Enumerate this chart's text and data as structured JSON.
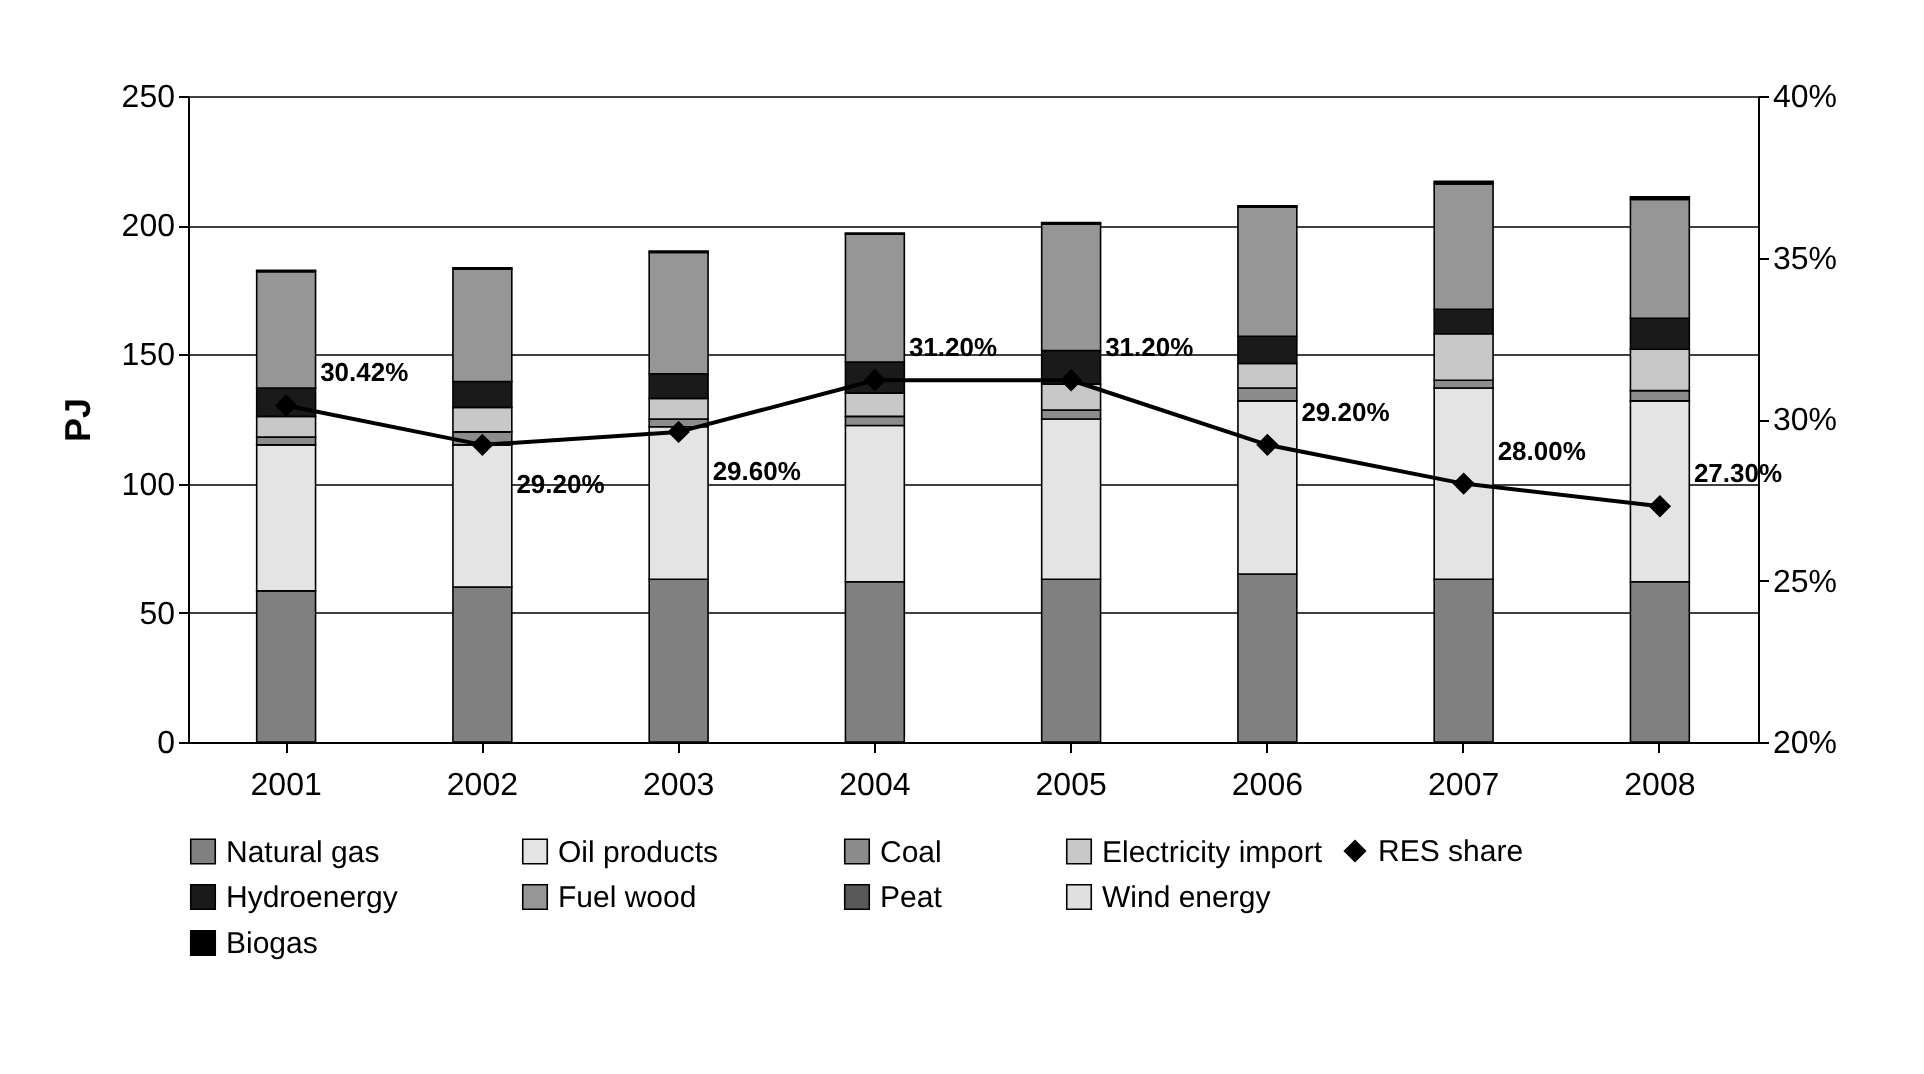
{
  "chart_data": {
    "type": "bar",
    "stacked": true,
    "ylabel": "PJ",
    "categories": [
      "2001",
      "2002",
      "2003",
      "2004",
      "2005",
      "2006",
      "2007",
      "2008"
    ],
    "ylim": [
      0,
      250
    ],
    "yticks": [
      0,
      50,
      100,
      150,
      200,
      250
    ],
    "y2lim": [
      20,
      40
    ],
    "y2ticks": [
      {
        "value": 20,
        "label": "20%"
      },
      {
        "value": 25,
        "label": "25%"
      },
      {
        "value": 30,
        "label": "30%"
      },
      {
        "value": 35,
        "label": "35%"
      },
      {
        "value": 40,
        "label": "40%"
      }
    ],
    "grid": "y",
    "legend": "bottom",
    "series": [
      {
        "name": "Natural gas",
        "color": "#808080",
        "values": [
          58.5,
          60,
          63,
          62,
          63,
          65,
          63,
          62
        ]
      },
      {
        "name": "Oil products",
        "color": "#e4e4e4",
        "values": [
          56.5,
          55,
          59,
          60.5,
          62,
          67,
          74,
          70
        ]
      },
      {
        "name": "Coal",
        "color": "#8c8c8c",
        "values": [
          3,
          5,
          3,
          3.5,
          3.5,
          5,
          3,
          4
        ]
      },
      {
        "name": "Electricity import",
        "color": "#c8c8c8",
        "values": [
          8,
          9.5,
          8,
          9,
          10,
          9.5,
          18,
          16
        ]
      },
      {
        "name": "Hydroenergy",
        "color": "#1a1a1a",
        "values": [
          11,
          10,
          9.5,
          12,
          13,
          10.5,
          9.5,
          12
        ]
      },
      {
        "name": "Fuel wood",
        "color": "#969696",
        "values": [
          45,
          43.5,
          47,
          49.5,
          49,
          50,
          48.5,
          46
        ]
      },
      {
        "name": "Peat",
        "color": "#595959",
        "values": [
          null,
          null,
          null,
          null,
          null,
          null,
          null,
          null
        ]
      },
      {
        "name": "Wind energy",
        "color": "#e0e0e0",
        "values": [
          null,
          null,
          null,
          null,
          null,
          null,
          null,
          null
        ]
      },
      {
        "name": "Biogas",
        "color": "#000000",
        "values": [
          0.5,
          0.5,
          0.5,
          0.5,
          0.5,
          0.5,
          1,
          1
        ]
      },
      {
        "name": "RES share",
        "type": "line",
        "axis": "y2",
        "color": "#000000",
        "marker": "diamond",
        "values": [
          30.42,
          29.2,
          29.6,
          31.2,
          31.2,
          29.2,
          28.0,
          27.3
        ],
        "value_labels": [
          "30.42%",
          "29.20%",
          "29.60%",
          "31.20%",
          "31.20%",
          "29.20%",
          "28.00%",
          "27.30%"
        ]
      }
    ]
  }
}
